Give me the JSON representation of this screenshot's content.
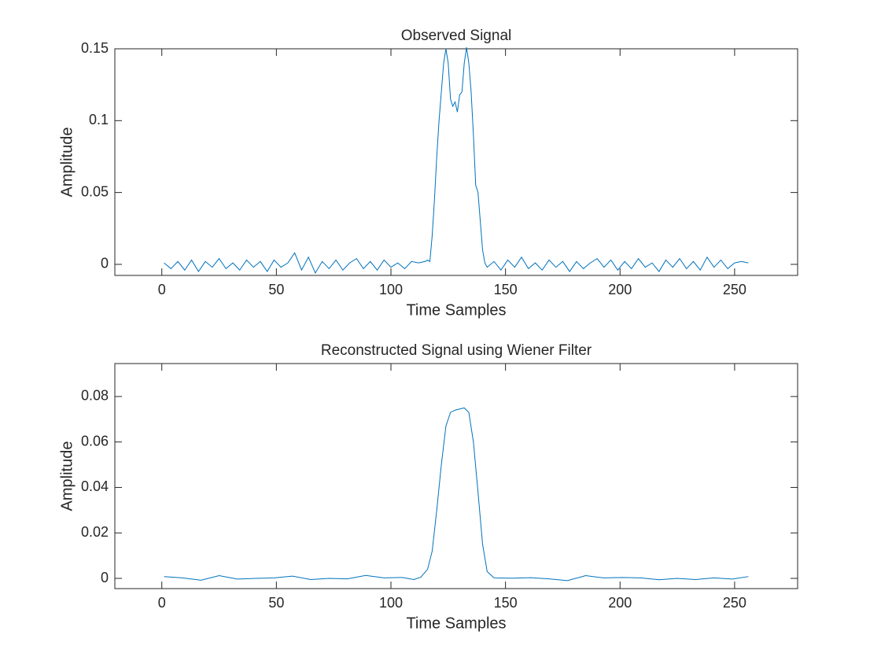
{
  "chart_data": [
    {
      "type": "line",
      "title": "Observed Signal",
      "xlabel": "Time Samples",
      "ylabel": "Amplitude",
      "x": [
        1,
        4,
        7,
        10,
        13,
        16,
        19,
        22,
        25,
        28,
        31,
        34,
        37,
        40,
        43,
        46,
        49,
        52,
        55,
        58,
        61,
        64,
        67,
        70,
        73,
        76,
        79,
        82,
        85,
        88,
        91,
        94,
        97,
        100,
        103,
        106,
        109,
        112,
        115,
        116,
        117,
        118,
        119,
        120,
        121,
        122,
        123,
        124,
        125,
        126,
        127,
        128,
        129,
        130,
        131,
        132,
        133,
        134,
        135,
        136,
        137,
        138,
        139,
        140,
        141,
        142,
        145,
        148,
        151,
        154,
        157,
        160,
        163,
        166,
        169,
        172,
        175,
        178,
        181,
        184,
        187,
        190,
        193,
        196,
        199,
        202,
        205,
        208,
        211,
        214,
        217,
        220,
        223,
        226,
        229,
        232,
        235,
        238,
        241,
        244,
        247,
        250,
        253,
        256
      ],
      "series": [
        {
          "color": "#0072bd",
          "values": [
            0.001,
            -0.003,
            0.002,
            -0.004,
            0.003,
            -0.005,
            0.002,
            -0.002,
            0.004,
            -0.003,
            0.001,
            -0.004,
            0.003,
            -0.002,
            0.002,
            -0.005,
            0.003,
            -0.002,
            0.001,
            0.008,
            -0.004,
            0.005,
            -0.006,
            0.002,
            -0.003,
            0.003,
            -0.004,
            0.001,
            0.004,
            -0.003,
            0.002,
            -0.004,
            0.003,
            -0.002,
            0.001,
            -0.003,
            0.002,
            0.001,
            0.002,
            0.003,
            0.002,
            0.02,
            0.045,
            0.075,
            0.1,
            0.12,
            0.14,
            0.15,
            0.14,
            0.115,
            0.11,
            0.113,
            0.106,
            0.118,
            0.12,
            0.14,
            0.151,
            0.14,
            0.12,
            0.09,
            0.055,
            0.05,
            0.03,
            0.01,
            0.001,
            -0.002,
            0.002,
            -0.004,
            0.003,
            -0.002,
            0.005,
            -0.003,
            0.001,
            -0.004,
            0.003,
            -0.002,
            0.002,
            -0.005,
            0.002,
            -0.003,
            0.001,
            0.004,
            -0.002,
            0.003,
            -0.004,
            0.002,
            -0.003,
            0.004,
            -0.002,
            0.001,
            -0.005,
            0.003,
            -0.002,
            0.004,
            -0.003,
            0.002,
            -0.004,
            0.005,
            -0.002,
            0.003,
            -0.003,
            0.001,
            0.002,
            0.001
          ]
        }
      ],
      "xlim": [
        -20.5,
        277.5
      ],
      "ylim": [
        -0.0077,
        0.15
      ],
      "xticks": [
        0,
        50,
        100,
        150,
        200,
        250
      ],
      "yticks": [
        0,
        0.05,
        0.1,
        0.15
      ]
    },
    {
      "type": "line",
      "title": "Reconstructed Signal using Wiener Filter",
      "xlabel": "Time Samples",
      "ylabel": "Amplitude",
      "x": [
        1,
        9,
        17,
        25,
        33,
        41,
        49,
        57,
        65,
        73,
        81,
        89,
        97,
        105,
        110,
        113,
        116,
        118,
        120,
        122,
        124,
        126,
        128,
        130,
        132,
        134,
        136,
        138,
        140,
        142,
        145,
        153,
        161,
        169,
        177,
        185,
        193,
        201,
        209,
        217,
        225,
        233,
        241,
        249,
        256
      ],
      "series": [
        {
          "color": "#0072bd",
          "values": [
            0.0008,
            0.0002,
            -0.0008,
            0.0012,
            -0.0003,
            0,
            0.0002,
            0.001,
            -0.0005,
            0,
            -0.0002,
            0.0013,
            0.0002,
            0.0004,
            -0.0005,
            0.0005,
            0.004,
            0.012,
            0.03,
            0.05,
            0.067,
            0.073,
            0.074,
            0.0745,
            0.075,
            0.073,
            0.06,
            0.038,
            0.015,
            0.003,
            0.0002,
            0.0001,
            0.0003,
            -0.0002,
            -0.001,
            0.0012,
            0.0002,
            0.0004,
            0.0002,
            -0.0006,
            0,
            -0.0005,
            0.0002,
            -0.0003,
            0.0008
          ]
        }
      ],
      "xlim": [
        -20.5,
        277.5
      ],
      "ylim": [
        -0.0045,
        0.0945
      ],
      "xticks": [
        0,
        50,
        100,
        150,
        200,
        250
      ],
      "yticks": [
        0,
        0.02,
        0.04,
        0.06,
        0.08
      ]
    }
  ]
}
